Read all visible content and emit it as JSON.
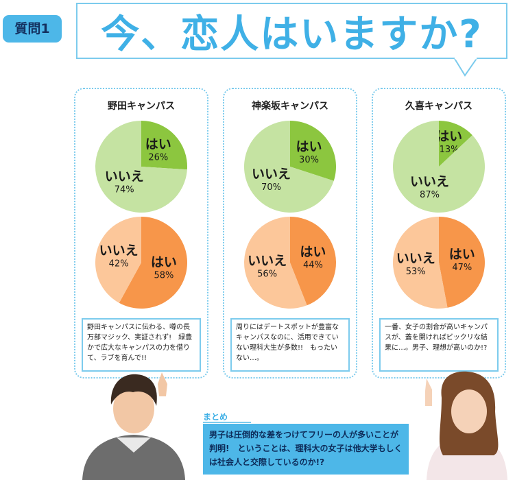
{
  "header": {
    "badge": "質問1",
    "question": "今、恋人はいますか?"
  },
  "panels": [
    {
      "title": "野田キャンパス",
      "comment": "野田キャンパスに伝わる、噂の長万部マジック、実証されず!　緑豊かで広大なキャンパスの力を借りて、ラブを育んで!!"
    },
    {
      "title": "神楽坂キャンパス",
      "comment": "周りにはデートスポットが豊富なキャンパスなのに、活用できていない理科大生が多数!!　もったいない…。"
    },
    {
      "title": "久喜キャンパス",
      "comment": "一番、女子の割合が高いキャンパスが、蓋を開ければビックリな結果に…。男子、理想が高いのか!?"
    }
  ],
  "summary": {
    "heading": "まとめ",
    "text": "男子は圧倒的な差をつけてフリーの人が多いことが判明!　ということは、理科大の女子は他大学もしくは社会人と交際しているのか!?"
  },
  "colors": {
    "accent": "#4db7e8",
    "male_yes": "#8cc63f",
    "male_no": "#c5e3a2",
    "female_yes": "#f7964a",
    "female_no": "#fcc79a"
  },
  "chart_data": [
    {
      "type": "pie",
      "campus": "野田キャンパス",
      "group": "top",
      "labels": [
        "はい",
        "いいえ"
      ],
      "values": [
        26,
        74
      ],
      "value_labels": [
        "26%",
        "74%"
      ],
      "colors": [
        "#8cc63f",
        "#c5e3a2"
      ]
    },
    {
      "type": "pie",
      "campus": "野田キャンパス",
      "group": "bottom",
      "labels": [
        "はい",
        "いいえ"
      ],
      "values": [
        58,
        42
      ],
      "value_labels": [
        "58%",
        "42%"
      ],
      "colors": [
        "#f7964a",
        "#fcc79a"
      ]
    },
    {
      "type": "pie",
      "campus": "神楽坂キャンパス",
      "group": "top",
      "labels": [
        "はい",
        "いいえ"
      ],
      "values": [
        30,
        70
      ],
      "value_labels": [
        "30%",
        "70%"
      ],
      "colors": [
        "#8cc63f",
        "#c5e3a2"
      ]
    },
    {
      "type": "pie",
      "campus": "神楽坂キャンパス",
      "group": "bottom",
      "labels": [
        "はい",
        "いいえ"
      ],
      "values": [
        44,
        56
      ],
      "value_labels": [
        "44%",
        "56%"
      ],
      "colors": [
        "#f7964a",
        "#fcc79a"
      ]
    },
    {
      "type": "pie",
      "campus": "久喜キャンパス",
      "group": "top",
      "labels": [
        "はい",
        "いいえ"
      ],
      "values": [
        13,
        87
      ],
      "value_labels": [
        "13%",
        "87%"
      ],
      "colors": [
        "#8cc63f",
        "#c5e3a2"
      ]
    },
    {
      "type": "pie",
      "campus": "久喜キャンパス",
      "group": "bottom",
      "labels": [
        "はい",
        "いいえ"
      ],
      "values": [
        47,
        53
      ],
      "value_labels": [
        "47%",
        "53%"
      ],
      "colors": [
        "#f7964a",
        "#fcc79a"
      ]
    }
  ]
}
